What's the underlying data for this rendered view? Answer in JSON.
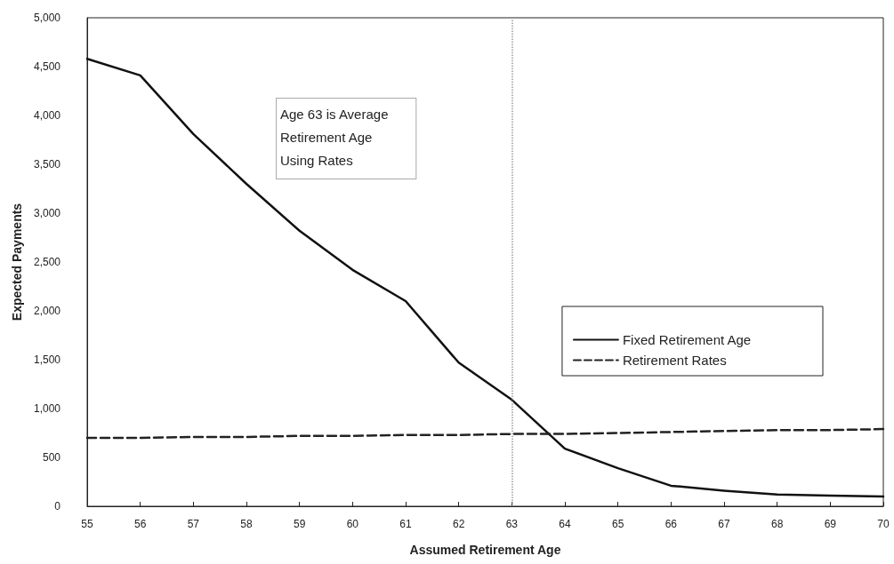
{
  "chart_data": {
    "type": "line",
    "xlabel": "Assumed Retirement Age",
    "ylabel": "Expected Payments",
    "x": [
      55,
      56,
      57,
      58,
      59,
      60,
      61,
      62,
      63,
      64,
      65,
      66,
      67,
      68,
      69,
      70
    ],
    "series": [
      {
        "name": "Fixed Retirement Age",
        "color": "#111111",
        "line_style": "solid",
        "values": [
          4580,
          4410,
          3810,
          3300,
          2820,
          2420,
          2100,
          1470,
          1090,
          590,
          390,
          210,
          160,
          120,
          110,
          100
        ]
      },
      {
        "name": "Retirement Rates",
        "color": "#222222",
        "line_style": "dashed",
        "values": [
          700,
          700,
          710,
          710,
          720,
          720,
          730,
          730,
          740,
          740,
          750,
          760,
          770,
          780,
          780,
          790
        ]
      }
    ],
    "xlim": [
      55,
      70
    ],
    "xticks": [
      55,
      56,
      57,
      58,
      59,
      60,
      61,
      62,
      63,
      64,
      65,
      66,
      67,
      68,
      69,
      70
    ],
    "ylim": [
      0,
      5000
    ],
    "yticks": [
      0,
      {
        "value": 500,
        "label": "500"
      },
      {
        "value": 1000,
        "label": "1,000"
      },
      {
        "value": 1500,
        "label": "1,500"
      },
      {
        "value": 2000,
        "label": "2,000"
      },
      {
        "value": 2500,
        "label": "2,500"
      },
      {
        "value": 3000,
        "label": "3,000"
      },
      {
        "value": 3500,
        "label": "3,500"
      },
      {
        "value": 4000,
        "label": "4,000"
      },
      {
        "value": 4500,
        "label": "4,500"
      },
      {
        "value": 5000,
        "label": "5,000"
      }
    ],
    "ref_lines": [
      {
        "axis": "x",
        "value": 63,
        "label": null,
        "color": "#999999",
        "line_style": "dotted"
      }
    ],
    "annotations": [
      "Age 63 is Average\nRetirement Age\nUsing Rates"
    ],
    "marker": "none",
    "grid": false,
    "legend": "right"
  }
}
